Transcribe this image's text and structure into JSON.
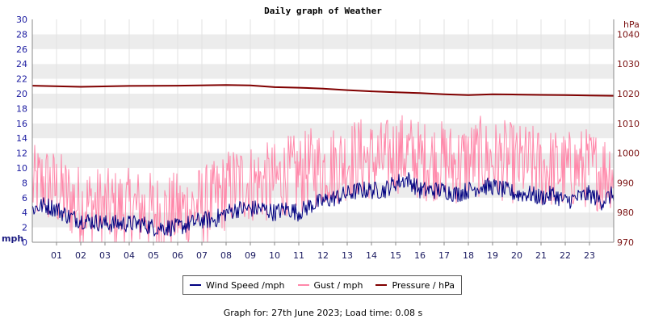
{
  "footer": "Graph for: 27th June 2023; Load time: 0.08 s",
  "chart_data": {
    "type": "line",
    "title": "Daily graph of Weather",
    "left_axis": {
      "unit": "mph",
      "ylim": [
        0,
        30
      ],
      "ticks": [
        0,
        2,
        4,
        6,
        8,
        10,
        12,
        14,
        16,
        18,
        20,
        22,
        24,
        26,
        28,
        30
      ]
    },
    "right_axis": {
      "unit": "hPa",
      "ylim": [
        970,
        1045
      ],
      "ticks": [
        970,
        980,
        990,
        1000,
        1010,
        1020,
        1030,
        1040
      ]
    },
    "x_axis": {
      "range": [
        0,
        24
      ],
      "tick_labels": [
        "01",
        "02",
        "03",
        "04",
        "05",
        "06",
        "07",
        "08",
        "09",
        "10",
        "11",
        "12",
        "13",
        "14",
        "15",
        "16",
        "17",
        "18",
        "19",
        "20",
        "21",
        "22",
        "23"
      ]
    },
    "grid": true,
    "legend_position": "bottom",
    "series": [
      {
        "name": "Wind Speed /mph",
        "axis": "left",
        "color": "#000080",
        "x": [
          0,
          0.5,
          1,
          1.5,
          2,
          2.5,
          3,
          3.5,
          4,
          4.5,
          5,
          5.5,
          6,
          6.5,
          7,
          7.5,
          8,
          8.5,
          9,
          9.5,
          10,
          10.5,
          11,
          11.5,
          12,
          12.5,
          13,
          13.5,
          14,
          14.5,
          15,
          15.5,
          16,
          16.5,
          17,
          17.5,
          18,
          18.5,
          19,
          19.5,
          20,
          20.5,
          21,
          21.5,
          22,
          22.5,
          23,
          23.5,
          24
        ],
        "values": [
          4.5,
          5,
          4.5,
          3.5,
          3,
          2.8,
          2.5,
          2.5,
          2.5,
          2.5,
          2,
          2,
          2,
          2.5,
          3,
          3,
          4,
          4.5,
          4.5,
          4.5,
          4,
          4.5,
          4,
          5,
          5.5,
          6,
          6.5,
          7,
          7,
          7,
          8,
          8.5,
          7,
          7,
          7,
          6.5,
          7,
          7.5,
          7.5,
          7,
          6.5,
          6.5,
          6,
          6.5,
          5.5,
          6,
          6.5,
          5.5,
          6.5
        ],
        "noise": 1.2
      },
      {
        "name": "Gust / mph",
        "axis": "left",
        "color": "#ff88aa",
        "x": [
          0,
          0.5,
          1,
          1.5,
          2,
          2.5,
          3,
          3.5,
          4,
          4.5,
          5,
          5.5,
          6,
          6.5,
          7,
          7.5,
          8,
          8.5,
          9,
          9.5,
          10,
          10.5,
          11,
          11.5,
          12,
          12.5,
          13,
          13.5,
          14,
          14.5,
          15,
          15.5,
          16,
          16.5,
          17,
          17.5,
          18,
          18.5,
          19,
          19.5,
          20,
          20.5,
          21,
          21.5,
          22,
          22.5,
          23,
          23.5,
          24
        ],
        "values": [
          7.5,
          8,
          7,
          6,
          5,
          5,
          4.5,
          4.5,
          4.5,
          4.5,
          4,
          4,
          4,
          4.5,
          5,
          5.5,
          7,
          8,
          8,
          8,
          8,
          9,
          9,
          10,
          10,
          10.5,
          11,
          11.5,
          11,
          11,
          12,
          12,
          11,
          11,
          11,
          10.5,
          11,
          11.5,
          11,
          11,
          10.5,
          10.5,
          10,
          10,
          9.5,
          10,
          10,
          9.5,
          10
        ],
        "noise": 5.5
      },
      {
        "name": "Pressure / hPa",
        "axis": "right",
        "color": "#800000",
        "x": [
          0,
          2,
          4,
          6,
          8,
          9,
          10,
          11,
          12,
          13,
          14,
          15,
          16,
          17,
          18,
          19,
          20,
          21,
          22,
          23,
          24
        ],
        "values": [
          1022.7,
          1022.3,
          1022.6,
          1022.7,
          1022.9,
          1022.8,
          1022.2,
          1022,
          1021.7,
          1021.2,
          1020.8,
          1020.5,
          1020.2,
          1019.8,
          1019.5,
          1019.8,
          1019.7,
          1019.6,
          1019.5,
          1019.4,
          1019.3
        ]
      }
    ]
  }
}
